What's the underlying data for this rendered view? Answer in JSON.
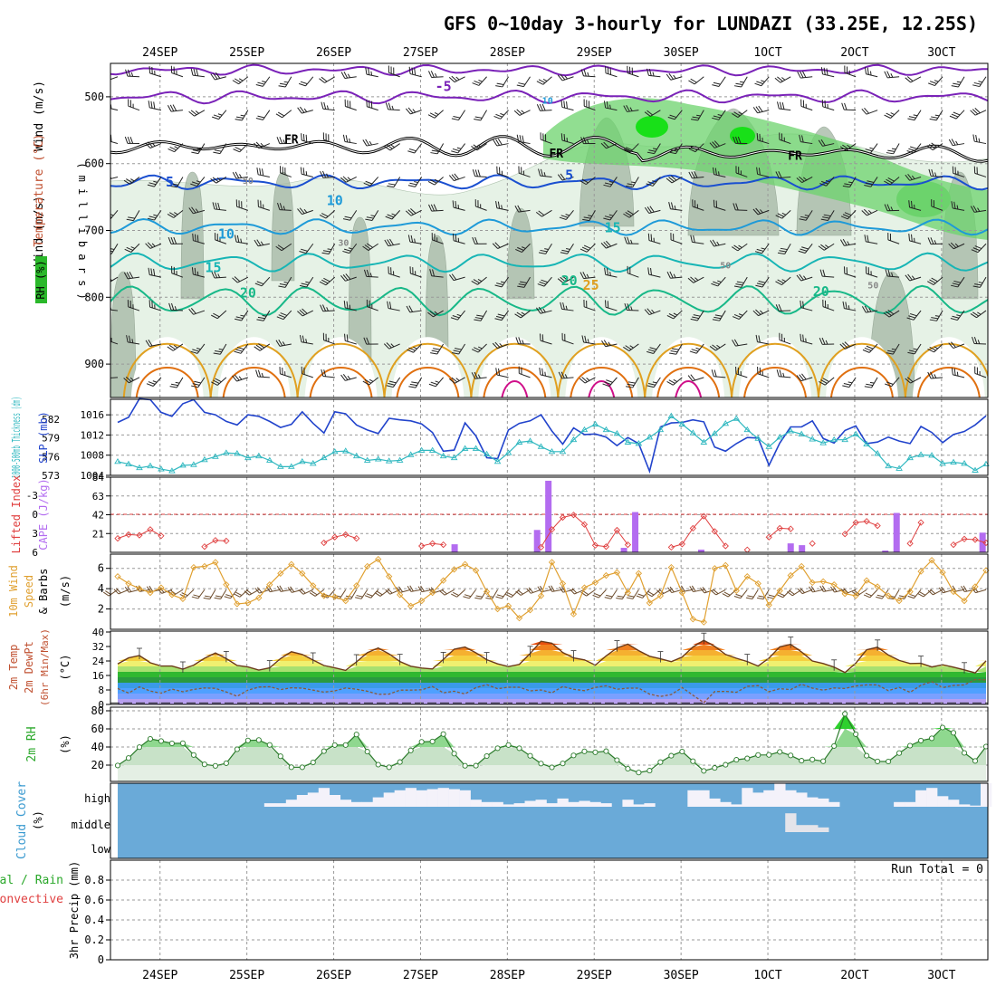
{
  "title": "GFS 0~10day 3-hourly for LUNDAZI (33.25E, 12.25S)",
  "dates": [
    "24SEP",
    "25SEP",
    "26SEP",
    "27SEP",
    "28SEP",
    "29SEP",
    "30SEP",
    "1OCT",
    "2OCT",
    "3OCT"
  ],
  "colors": {
    "wind_barb": "#000000",
    "temp_purple": "#7a22b8",
    "temp_blue": "#1a4fd0",
    "temp_ltblue": "#1e9ad8",
    "temp_teal": "#17b5b5",
    "temp_green": "#18b888",
    "temp_orange": "#e0a020",
    "temp_dkorange": "#e07010",
    "temp_magenta": "#d0108a",
    "rh_fill_light": "#e6f2e6",
    "rh_fill_mid": "#c6dcc8",
    "rh_fill_dark": "#a8bba8",
    "rh_green": "#6cd36c",
    "rh_bright": "#18e018",
    "slp": "#2244cc",
    "thickness": "#30b8c0",
    "cape": "#b36cf0",
    "lifted_index": "#e04040",
    "wind_speed": "#e0a030",
    "cloud": "#6aaad8",
    "cloud_white": "#f4f2fa",
    "grid": "#999999"
  },
  "chart_data": [
    {
      "type": "contour",
      "panel": "upper_air",
      "labels": {
        "wind": "Wind (m/s)",
        "temperature": "Temperature (°C)",
        "rh": "RH (%)",
        "axis": "( m i l l i b a r s )"
      },
      "y_ticks": [
        500,
        600,
        700,
        800,
        900
      ],
      "ylim": [
        450,
        950
      ],
      "freezing_label": "FR",
      "isotherm_labels": [
        {
          "value": "-5",
          "day": 3.75,
          "p": 491
        },
        {
          "value": "5",
          "day": 0.6,
          "p": 634
        },
        {
          "value": "5",
          "day": 5.2,
          "p": 624
        },
        {
          "value": "10",
          "day": 1.25,
          "p": 712
        },
        {
          "value": "15",
          "day": 1.1,
          "p": 762
        },
        {
          "value": "15",
          "day": 5.7,
          "p": 703
        },
        {
          "value": "20",
          "day": 1.5,
          "p": 800
        },
        {
          "value": "20",
          "day": 5.2,
          "p": 782
        },
        {
          "value": "20",
          "day": 8.1,
          "p": 798
        },
        {
          "value": "25",
          "day": 5.45,
          "p": 789
        },
        {
          "value": "10",
          "day": 4.95,
          "p": 510
        },
        {
          "value": "10",
          "day": 2.5,
          "p": 662
        },
        {
          "value": "30",
          "day": 2.6,
          "p": 723
        },
        {
          "value": "50",
          "day": 1.5,
          "p": 630
        },
        {
          "value": "50",
          "day": 7.0,
          "p": 757
        },
        {
          "value": "50",
          "day": 8.7,
          "p": 787
        }
      ]
    },
    {
      "type": "line",
      "panel": "slp_thickness",
      "labels": {
        "slp": "SLP (mb)",
        "thickness": "1000-500mb Thickness (dm)"
      },
      "slp_ticks": [
        1004,
        1008,
        1012,
        1016
      ],
      "thickness_ticks": [
        573,
        576,
        579,
        582
      ],
      "series": [
        {
          "name": "SLP",
          "values": [
            1014.5,
            1015.5,
            1019.2,
            1019,
            1016.5,
            1015.7,
            1018.2,
            1019,
            1016.5,
            1016,
            1014.7,
            1014,
            1016,
            1015.7,
            1014.7,
            1013.5,
            1014.1,
            1016.6,
            1014.3,
            1012.4,
            1016.6,
            1016.2,
            1014,
            1013,
            1012.3,
            1015.3,
            1015,
            1014.8,
            1014.2,
            1012.5,
            1008.8,
            1009,
            1014.4,
            1011.8,
            1007.5,
            1007.3,
            1013,
            1014.3,
            1014.8,
            1016,
            1012.8,
            1010.2,
            1013.4,
            1012.1,
            1012.2,
            1011.6,
            1009.9,
            1011.5,
            1010.3,
            1004.8,
            1013.6,
            1014.4,
            1014.5,
            1015,
            1014.6,
            1009.6,
            1008.8,
            1010.3,
            1011.5,
            1011.4,
            1006,
            1010.4,
            1013.6,
            1013.6,
            1014.8,
            1011.3,
            1010.4,
            1012.9,
            1013.8,
            1010.3,
            1010.6,
            1011.6,
            1010.8,
            1010.3,
            1013.7,
            1012.5,
            1010.5,
            1012.1,
            1012.7,
            1014,
            1015.8
          ]
        },
        {
          "name": "Thickness",
          "values": [
            575.2,
            574.8,
            574.2,
            574.5,
            574,
            573.7,
            574.6,
            574.7,
            575.5,
            576,
            576.6,
            576.5,
            575.8,
            576.1,
            575.4,
            574.4,
            574.4,
            575.2,
            574.9,
            575.8,
            576.8,
            576.9,
            576.1,
            575.4,
            575.6,
            575.3,
            575.4,
            576.3,
            577,
            577,
            576.1,
            575.8,
            577.3,
            577.3,
            576.4,
            575.2,
            576.6,
            578.3,
            578.5,
            577.6,
            576.8,
            576.8,
            578.7,
            580.3,
            581.2,
            580.3,
            579.7,
            578.3,
            578.1,
            579.1,
            580.3,
            582.5,
            581.2,
            579.8,
            578.3,
            579.7,
            581.3,
            582.1,
            580.3,
            578.9,
            577.6,
            579.1,
            580.1,
            579.6,
            578.8,
            578.2,
            578.7,
            578.7,
            579.6,
            578,
            576.5,
            574.5,
            574.1,
            575.8,
            576.3,
            576.2,
            574.9,
            575.1,
            574.9,
            573.8,
            574.8
          ]
        }
      ]
    },
    {
      "type": "bar_line",
      "panel": "cape_li",
      "labels": {
        "cape": "CAPE (J/kg)",
        "li": "Lifted Index"
      },
      "cape_ticks": [
        21,
        42,
        63,
        84
      ],
      "li_ticks": [
        -3,
        0,
        3,
        6
      ],
      "li_series": [
        3.8,
        3.2,
        3.3,
        2.4,
        3.4,
        null,
        null,
        null,
        5.1,
        4.1,
        4.2,
        null,
        null,
        null,
        null,
        null,
        null,
        null,
        null,
        4.5,
        3.6,
        3.2,
        3.8,
        null,
        null,
        null,
        null,
        null,
        5,
        4.6,
        4.8,
        null,
        null,
        null,
        null,
        null,
        null,
        null,
        null,
        5.2,
        2.4,
        0.5,
        0.1,
        1.6,
        4.9,
        5.1,
        2.5,
        4.8,
        null,
        null,
        null,
        5.2,
        4.7,
        2.2,
        0.3,
        2.7,
        5,
        null,
        5.6,
        null,
        3.6,
        2.2,
        2.3,
        null,
        4.6,
        null,
        null,
        3.1,
        1.3,
        1.1,
        1.8,
        null,
        null,
        4.6,
        1.3,
        null,
        null,
        4.8,
        3.9,
        4,
        4.5
      ],
      "cape_series": [
        0,
        0,
        0,
        0,
        0,
        0,
        0,
        0,
        0,
        0,
        0,
        0,
        0,
        0,
        0,
        0,
        0,
        0,
        0,
        0,
        0,
        0,
        0,
        0,
        0,
        0,
        0,
        0,
        0,
        0,
        0,
        0,
        0,
        0,
        0,
        0,
        0,
        0,
        0,
        0,
        0,
        0,
        0,
        0,
        0,
        0,
        0,
        0,
        0,
        0,
        0,
        0,
        0,
        0,
        0,
        0,
        0,
        0,
        0,
        0,
        0,
        0,
        0,
        0,
        0,
        0,
        0,
        0,
        0,
        0,
        0,
        0,
        0,
        0,
        0,
        0,
        0,
        0,
        0,
        0,
        0
      ],
      "cape_bars": [
        {
          "day": 3.88,
          "value": 9
        },
        {
          "day": 4.83,
          "value": 25
        },
        {
          "day": 4.96,
          "value": 80
        },
        {
          "day": 5.83,
          "value": 5
        },
        {
          "day": 5.96,
          "value": 45
        },
        {
          "day": 6.72,
          "value": 3
        },
        {
          "day": 7.75,
          "value": 10
        },
        {
          "day": 7.88,
          "value": 8
        },
        {
          "day": 8.84,
          "value": 2
        },
        {
          "day": 8.97,
          "value": 44
        },
        {
          "day": 9.96,
          "value": 22
        }
      ]
    },
    {
      "type": "line",
      "panel": "wind_10m",
      "labels": {
        "main": "10m Wind",
        "speed": "Speed",
        "barbs": "& Barbs",
        "unit": "(m/s)"
      },
      "y_ticks": [
        2,
        4,
        6
      ],
      "series": [
        {
          "name": "Speed",
          "values": [
            5.2,
            4.5,
            4,
            3.6,
            4.1,
            3.4,
            3,
            6.1,
            6.2,
            6.6,
            4.4,
            2.5,
            2.6,
            3.1,
            4.4,
            5.5,
            6.4,
            5.5,
            4.3,
            3.3,
            3.2,
            2.8,
            4.3,
            6.2,
            6.9,
            5.2,
            3.4,
            2.3,
            2.8,
            3.6,
            4.8,
            5.9,
            6.4,
            5.8,
            3.7,
            2,
            2.3,
            1.1,
            1.9,
            3.3,
            6.6,
            4.5,
            1.5,
            4.1,
            4.6,
            5.3,
            5.6,
            3.6,
            5.5,
            2.6,
            3.3,
            6.1,
            3.6,
            1,
            0.7,
            6,
            6.3,
            3.8,
            5.2,
            4.5,
            2.4,
            3.8,
            5.3,
            6.2,
            4.6,
            4.7,
            4.4,
            3.5,
            3.3,
            4.8,
            4.2,
            3.3,
            2.8,
            3.7,
            5.7,
            6.8,
            5.6,
            3.7,
            2.8,
            4.2,
            5.8
          ]
        }
      ]
    },
    {
      "type": "area",
      "panel": "temp_2m",
      "labels": {
        "temp": "2m Temp",
        "dewpt": "2m DewPt",
        "minmax": "(6hr Min/Max)",
        "unit": "(°C)"
      },
      "y_ticks": [
        0,
        8,
        16,
        24,
        32,
        40
      ],
      "series": [
        {
          "name": "2m Temp",
          "values": [
            22.4,
            25.7,
            27,
            23,
            21.2,
            21.2,
            19.5,
            21.7,
            25.5,
            28.4,
            25.3,
            21.5,
            20.7,
            19,
            20.2,
            25.3,
            29.1,
            27.6,
            24.5,
            21.5,
            20.2,
            18.8,
            23.5,
            28.6,
            31.2,
            27.9,
            23.7,
            21.1,
            20.1,
            19.6,
            24.8,
            30.5,
            31.7,
            28.5,
            24.7,
            22.4,
            20.9,
            22.1,
            28.1,
            34.9,
            33.8,
            28.7,
            25.7,
            24.6,
            21.7,
            26.8,
            31.2,
            33.3,
            29.7,
            26.6,
            25.2,
            23.6,
            26.2,
            31.7,
            35.4,
            32.1,
            27.6,
            25.5,
            23.7,
            21.2,
            25.6,
            31.8,
            33.2,
            29,
            24,
            22.6,
            20.6,
            17.6,
            22.8,
            30.2,
            31.6,
            27.3,
            24.3,
            22.6,
            22.7,
            20.7,
            21.9,
            20.6,
            19.1,
            17.4,
            24.1
          ]
        },
        {
          "name": "2m DewPt",
          "values": [
            8.8,
            6.3,
            9.7,
            7.4,
            6.2,
            8.5,
            7,
            8.3,
            9.1,
            8.9,
            6.9,
            4.5,
            7.9,
            9.6,
            9.8,
            8.2,
            9.2,
            9,
            7.9,
            6.8,
            7.5,
            9.1,
            8.4,
            7.3,
            5.6,
            5.7,
            7.9,
            7.9,
            8.1,
            9.9,
            6.4,
            7.3,
            5.8,
            9.3,
            10.9,
            8.7,
            9.5,
            9.5,
            7.5,
            8,
            6.4,
            9.9,
            8.4,
            7.6,
            9.4,
            10.3,
            8.4,
            9,
            9,
            5.7,
            4.4,
            5.5,
            9.3,
            5.1,
            1,
            7.1,
            7.2,
            6.7,
            10,
            10.4,
            7,
            8.7,
            8.2,
            11.2,
            9,
            7.9,
            9.1,
            8.8,
            10.2,
            10.8,
            10.8,
            7.6,
            9.4,
            6.7,
            10.6,
            12.6,
            9.3,
            10.5,
            10.8,
            13.7,
            13.6
          ]
        }
      ]
    },
    {
      "type": "area",
      "panel": "rh_2m",
      "labels": {
        "main": "2m RH",
        "unit": "(%)"
      },
      "y_ticks": [
        20,
        40,
        60,
        80
      ],
      "series": [
        {
          "name": "2m RH",
          "values": [
            19.6,
            27.8,
            39.8,
            49,
            46.6,
            44,
            44.2,
            31.2,
            20.8,
            19.2,
            22.1,
            37.5,
            47.2,
            47.7,
            42.3,
            29.8,
            17.7,
            17.6,
            23,
            35.4,
            42.1,
            42.2,
            53.8,
            34.9,
            20.5,
            17.6,
            23.4,
            36.2,
            45.7,
            46.1,
            54.3,
            32.7,
            19.3,
            19.4,
            30,
            38.6,
            42.2,
            38.6,
            30.3,
            21.7,
            17.5,
            21.8,
            30.7,
            35.2,
            34.2,
            35.4,
            25.5,
            16,
            11.8,
            13.9,
            23.3,
            30.4,
            35,
            24.3,
            13.6,
            16.9,
            20.4,
            25.9,
            27.4,
            31.2,
            31.3,
            34.6,
            30.7,
            24.9,
            26.2,
            24.3,
            41.1,
            76.6,
            54.1,
            30.4,
            24.1,
            24,
            33.3,
            41.5,
            47.1,
            49.6,
            61.5,
            55.7,
            33.5,
            24.6,
            40.5
          ]
        }
      ]
    },
    {
      "type": "bar",
      "panel": "cloud_cover",
      "labels": {
        "main": "Cloud Cover",
        "unit": "(%)",
        "high": "high",
        "middle": "middle",
        "low": "low"
      },
      "series": [
        {
          "name": "high",
          "values": [
            0,
            0,
            0,
            0,
            0,
            0,
            0,
            0,
            0,
            0,
            0,
            0,
            0,
            0,
            15,
            15,
            30,
            50,
            60,
            80,
            50,
            30,
            20,
            20,
            40,
            60,
            70,
            80,
            70,
            75,
            80,
            75,
            70,
            30,
            20,
            20,
            10,
            15,
            25,
            30,
            15,
            35,
            20,
            25,
            20,
            15,
            0,
            30,
            10,
            15,
            0,
            0,
            0,
            70,
            70,
            35,
            20,
            10,
            80,
            60,
            70,
            100,
            70,
            60,
            40,
            35,
            20,
            0,
            0,
            0,
            0,
            0,
            20,
            20,
            70,
            80,
            45,
            30,
            10,
            5,
            100
          ]
        },
        {
          "name": "middle",
          "values": [
            0,
            0,
            0,
            0,
            0,
            0,
            0,
            0,
            0,
            0,
            0,
            0,
            0,
            0,
            0,
            0,
            0,
            0,
            0,
            0,
            0,
            0,
            0,
            0,
            0,
            0,
            0,
            0,
            0,
            0,
            0,
            0,
            0,
            0,
            0,
            0,
            0,
            0,
            0,
            0,
            0,
            0,
            0,
            0,
            0,
            0,
            0,
            0,
            0,
            0,
            0,
            0,
            0,
            0,
            0,
            0,
            0,
            0,
            0,
            0,
            0,
            0,
            80,
            30,
            30,
            20,
            0,
            0,
            0,
            0,
            0,
            0,
            0,
            0,
            0,
            0,
            0,
            0,
            0,
            0,
            0
          ]
        }
      ]
    },
    {
      "type": "bar",
      "panel": "precip",
      "labels": {
        "main": "3hr Precip (mm)",
        "legend1": "Total / Rain",
        "legend2": "Convective",
        "run_total": "Run Total = 0"
      },
      "y_ticks": [
        0,
        0.2,
        0.4,
        0.6,
        0.8
      ],
      "ylim": [
        0,
        1
      ],
      "values": []
    }
  ]
}
